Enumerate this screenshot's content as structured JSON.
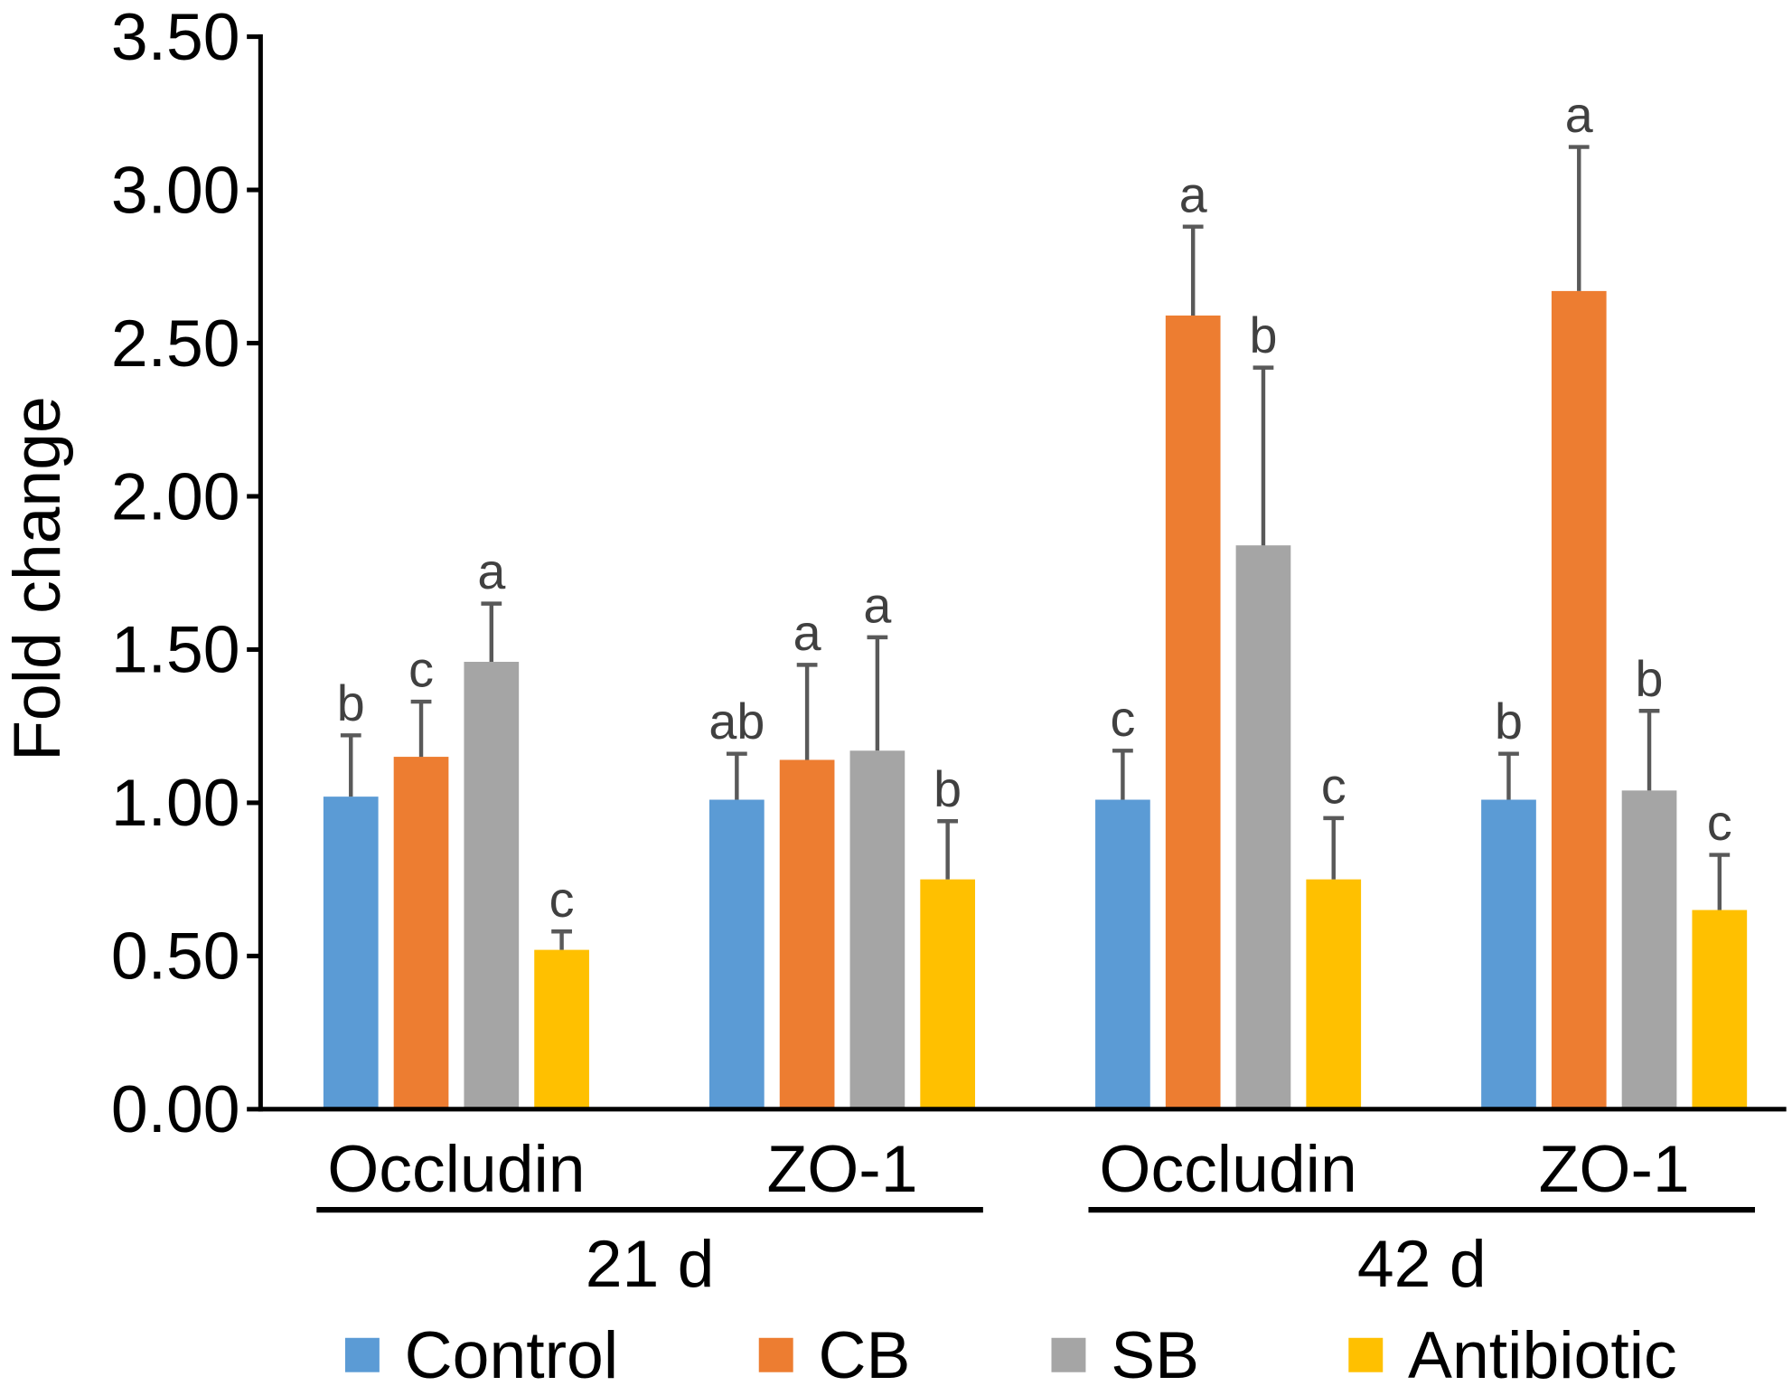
{
  "chart_data": {
    "type": "bar",
    "title": "",
    "ylabel": "Fold change",
    "ylim": [
      0,
      3.5
    ],
    "yticks": [
      0,
      0.5,
      1.0,
      1.5,
      2.0,
      2.5,
      3.0,
      3.5
    ],
    "ytick_labels": [
      "0.00",
      "0.50",
      "1.00",
      "1.50",
      "2.00",
      "2.50",
      "3.00",
      "3.50"
    ],
    "periods": [
      {
        "label": "21 d",
        "categories": [
          "Occludin",
          "ZO-1"
        ]
      },
      {
        "label": "42 d",
        "categories": [
          "Occludin",
          "ZO-1"
        ]
      }
    ],
    "series": [
      {
        "name": "Control",
        "color": "#5B9BD5",
        "values": [
          1.02,
          1.01,
          1.01,
          1.01
        ],
        "errors": [
          0.2,
          0.15,
          0.16,
          0.15
        ],
        "letters": [
          "b",
          "ab",
          "c",
          "b"
        ]
      },
      {
        "name": "CB",
        "color": "#ED7D31",
        "values": [
          1.15,
          1.14,
          2.59,
          2.67
        ],
        "errors": [
          0.18,
          0.31,
          0.29,
          0.47
        ],
        "letters": [
          "c",
          "a",
          "a",
          "a"
        ]
      },
      {
        "name": "SB",
        "color": "#A5A5A5",
        "values": [
          1.46,
          1.17,
          1.84,
          1.04
        ],
        "errors": [
          0.19,
          0.37,
          0.58,
          0.26
        ],
        "letters": [
          "a",
          "a",
          "b",
          "b"
        ]
      },
      {
        "name": "Antibiotic",
        "color": "#FFC000",
        "values": [
          0.52,
          0.75,
          0.75,
          0.65
        ],
        "errors": [
          0.06,
          0.19,
          0.2,
          0.18
        ],
        "letters": [
          "c",
          "b",
          "c",
          "c"
        ]
      }
    ],
    "error_bar_color": "#595959",
    "axis_color": "#000000",
    "grid": false,
    "legend_position": "bottom"
  }
}
